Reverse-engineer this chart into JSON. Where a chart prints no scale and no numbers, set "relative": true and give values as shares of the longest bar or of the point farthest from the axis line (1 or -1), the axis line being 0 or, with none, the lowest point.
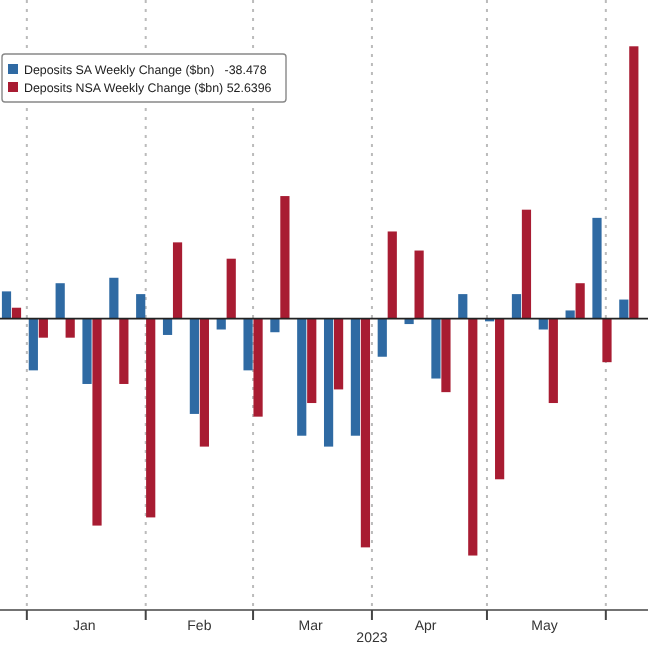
{
  "chart_data": {
    "type": "bar",
    "relative": true,
    "xlabel": "2023",
    "x": [
      "2022-12-28",
      "2023-01-04",
      "2023-01-11",
      "2023-01-18",
      "2023-01-25",
      "2023-02-01",
      "2023-02-08",
      "2023-02-15",
      "2023-02-22",
      "2023-03-01",
      "2023-03-08",
      "2023-03-15",
      "2023-03-22",
      "2023-03-29",
      "2023-04-05",
      "2023-04-12",
      "2023-04-19",
      "2023-04-26",
      "2023-05-03",
      "2023-05-10",
      "2023-05-17",
      "2023-05-24",
      "2023-05-31",
      "2023-06-07"
    ],
    "xlim": [
      "2022-12-25",
      "2023-06-12"
    ],
    "xticks": [
      {
        "value": "2023-01-01",
        "label": null
      },
      {
        "value": "2023-01-16",
        "label": "Jan"
      },
      {
        "value": "2023-02-01",
        "label": null
      },
      {
        "value": "2023-02-15",
        "label": "Feb"
      },
      {
        "value": "2023-03-01",
        "label": null
      },
      {
        "value": "2023-03-16",
        "label": "Mar"
      },
      {
        "value": "2023-04-01",
        "label": null
      },
      {
        "value": "2023-04-15",
        "label": "Apr"
      },
      {
        "value": "2023-05-01",
        "label": null
      },
      {
        "value": "2023-05-16",
        "label": "May"
      },
      {
        "value": "2023-06-01",
        "label": null
      }
    ],
    "series": [
      {
        "name": "Deposits SA Weekly Change ($bn)   -38.478",
        "color": "#2f6aa3",
        "values": [
          0.1,
          -0.19,
          0.13,
          -0.24,
          0.15,
          0.09,
          -0.06,
          -0.35,
          -0.04,
          -0.19,
          -0.05,
          -0.43,
          -0.47,
          -0.43,
          -0.14,
          -0.02,
          -0.22,
          0.09,
          -0.01,
          0.09,
          -0.04,
          0.03,
          0.37,
          0.07
        ]
      },
      {
        "name": "Deposits NSA Weekly Change ($bn) 52.6396",
        "color": "#a81c32",
        "values": [
          0.04,
          -0.07,
          -0.07,
          -0.76,
          -0.24,
          -0.73,
          0.28,
          -0.47,
          0.22,
          -0.36,
          0.45,
          -0.31,
          -0.26,
          -0.84,
          0.32,
          0.25,
          -0.27,
          -0.87,
          -0.59,
          0.4,
          -0.31,
          0.13,
          -0.16,
          1.0
        ]
      }
    ],
    "grid": "x",
    "legend": "top left"
  }
}
